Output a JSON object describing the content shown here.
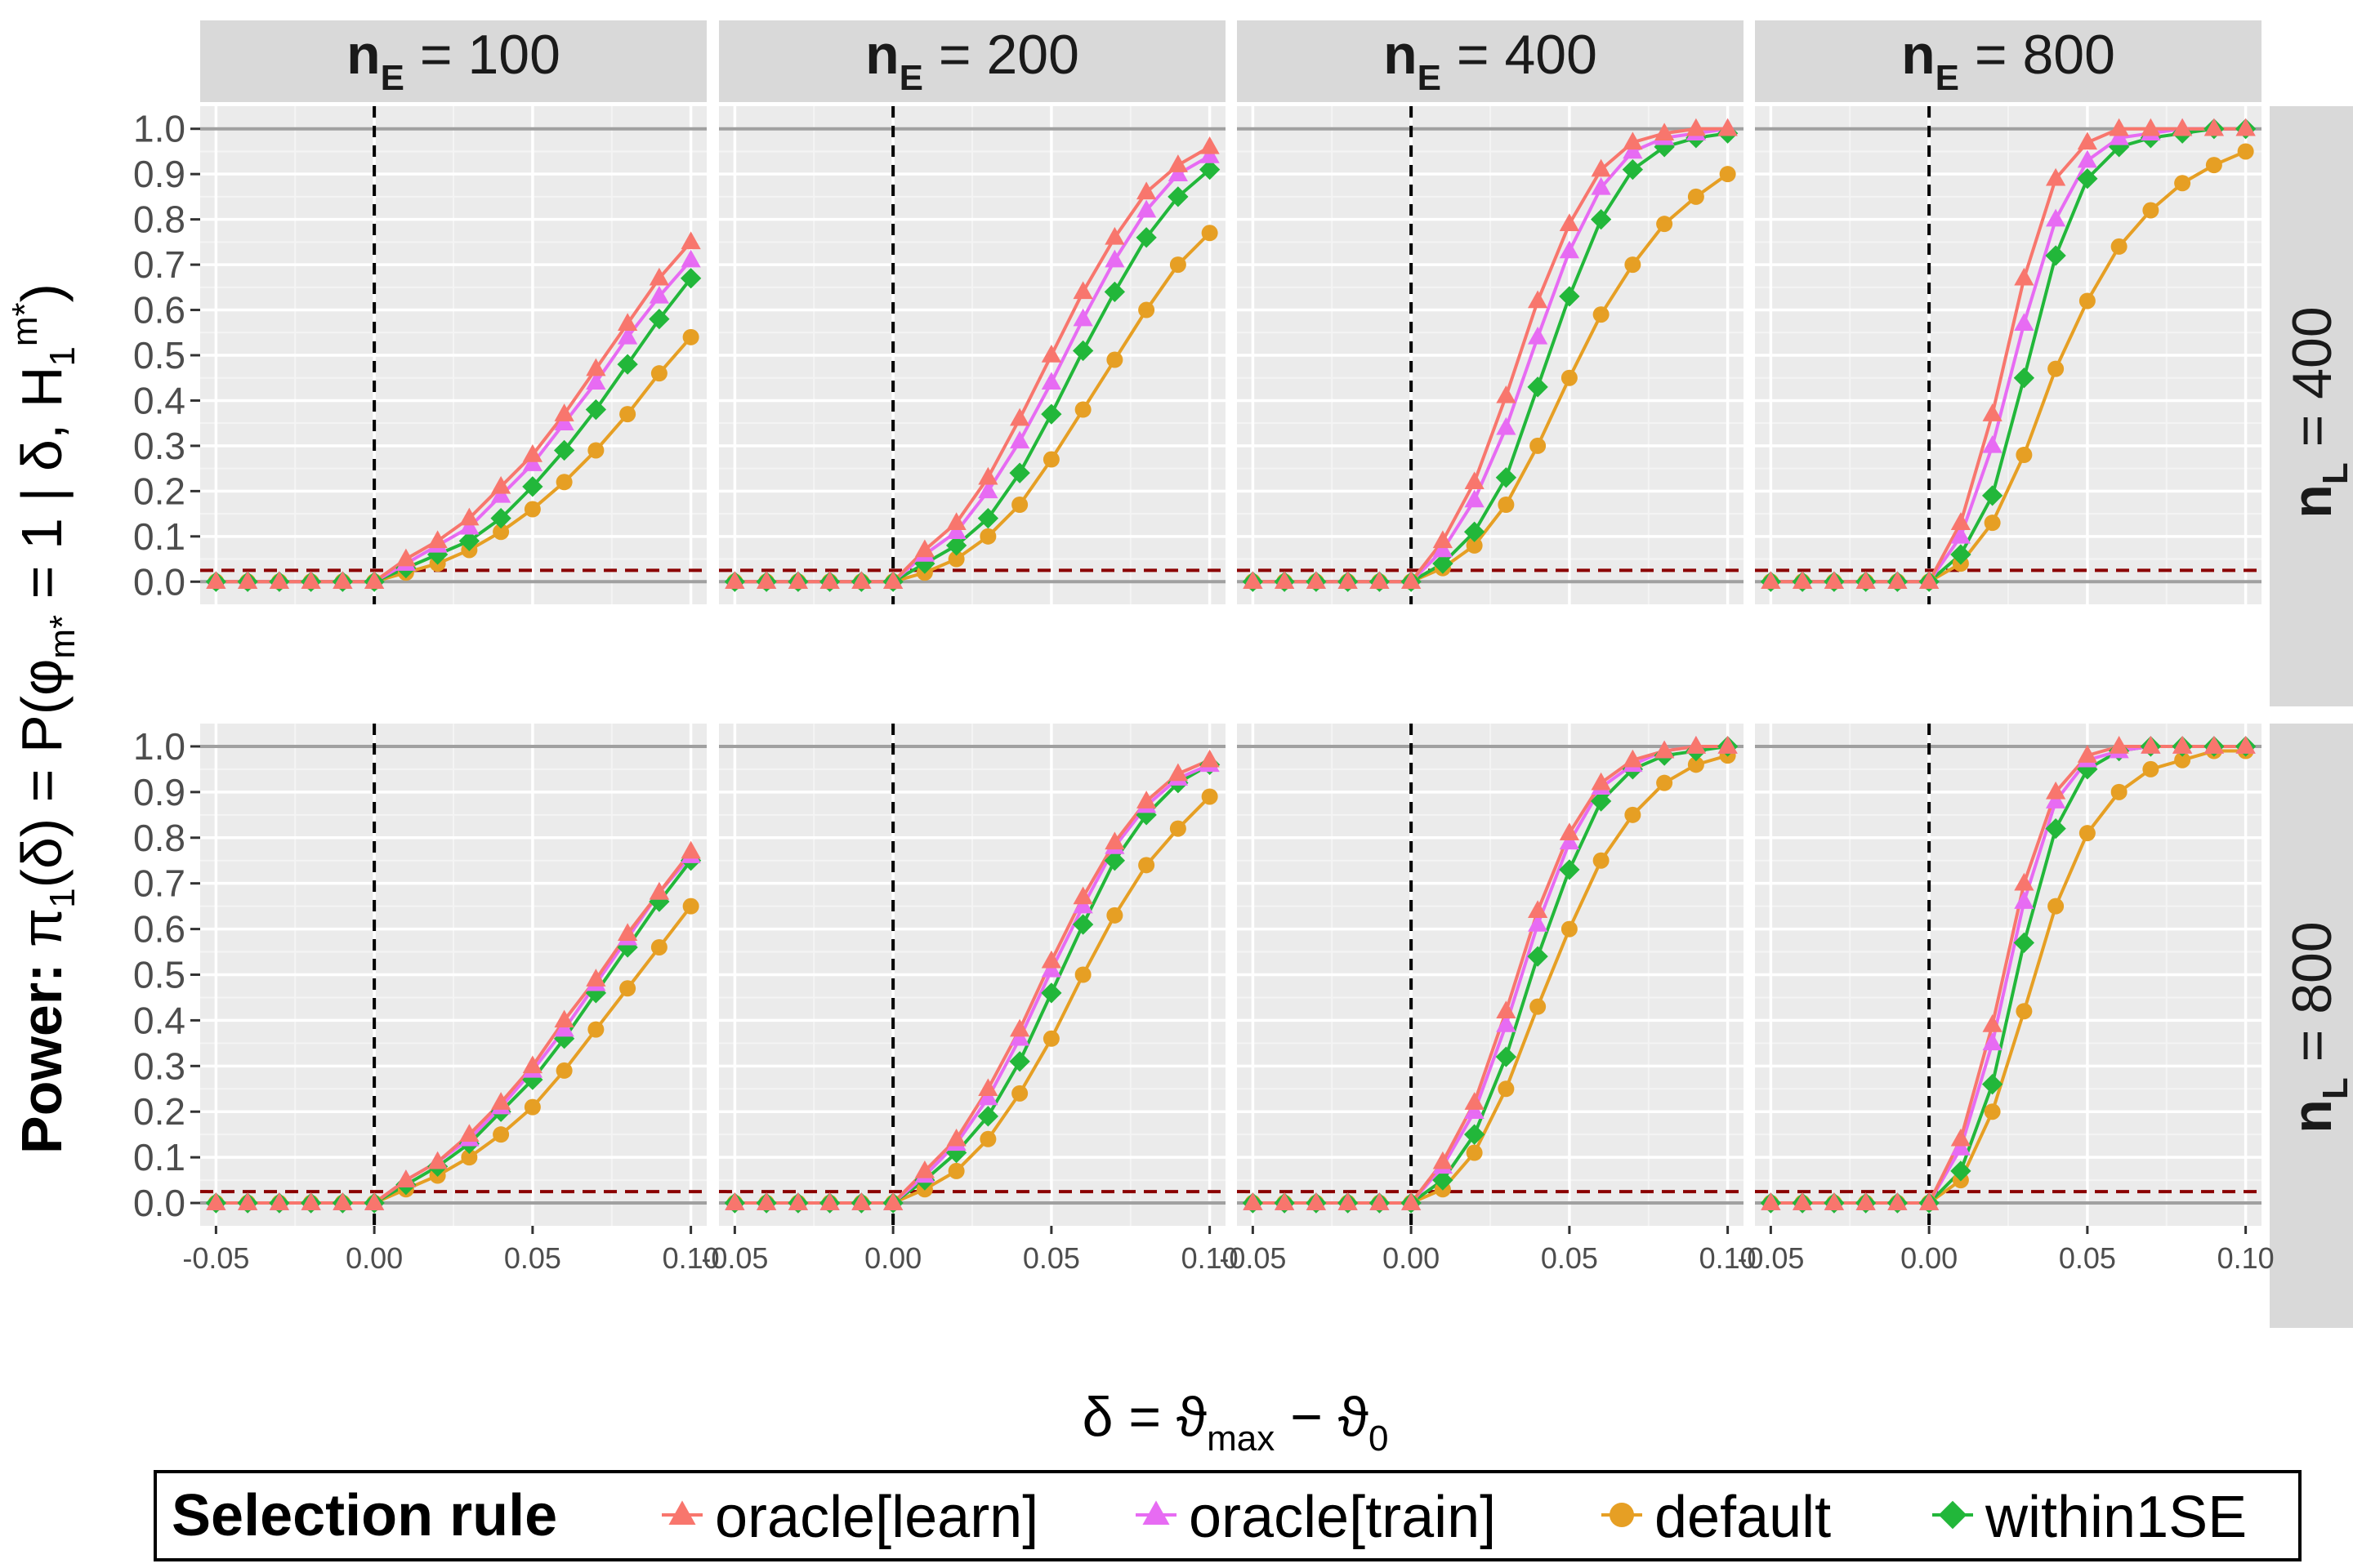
{
  "chart_data": {
    "type": "line",
    "facets": {
      "columns": [
        {
          "var": "n",
          "sub": "E",
          "op": "=",
          "value": "100"
        },
        {
          "var": "n",
          "sub": "E",
          "op": "=",
          "value": "200"
        },
        {
          "var": "n",
          "sub": "E",
          "op": "=",
          "value": "400"
        },
        {
          "var": "n",
          "sub": "E",
          "op": "=",
          "value": "800"
        }
      ],
      "rows": [
        {
          "var": "n",
          "sub": "L",
          "op": "=",
          "value": "400"
        },
        {
          "var": "n",
          "sub": "L",
          "op": "=",
          "value": "800"
        }
      ]
    },
    "x": [
      -0.05,
      -0.04,
      -0.03,
      -0.02,
      -0.01,
      0.0,
      0.01,
      0.02,
      0.03,
      0.04,
      0.05,
      0.06,
      0.07,
      0.08,
      0.09,
      0.1
    ],
    "xlim": [
      -0.055,
      0.105
    ],
    "ylim": [
      -0.05,
      1.05
    ],
    "x_ticks": [
      "-0.05",
      "0.00",
      "0.05",
      "0.10"
    ],
    "x_tick_values": [
      -0.05,
      0.0,
      0.05,
      0.1
    ],
    "y_ticks": [
      "0.0",
      "0.1",
      "0.2",
      "0.3",
      "0.4",
      "0.5",
      "0.6",
      "0.7",
      "0.8",
      "0.9",
      "1.0"
    ],
    "y_tick_values": [
      0,
      0.1,
      0.2,
      0.3,
      0.4,
      0.5,
      0.6,
      0.7,
      0.8,
      0.9,
      1.0
    ],
    "xlabel": {
      "pre": "δ = ϑ",
      "sub1": "max",
      "mid": " − ϑ",
      "sub2": "0"
    },
    "ylabel": {
      "bold": "Power: ",
      "p1": "π",
      "s1": "1",
      "p2": "(δ) = P(φ",
      "s2": "m*",
      "p3": " = 1 | δ, H",
      "s3": "1",
      "sup3": "m*",
      "p4": ")"
    },
    "reference_lines": {
      "vertical_x": 0.0,
      "horizontal_dashed_y": 0.025,
      "horizontal_solid_y": [
        0,
        1
      ]
    },
    "legend": {
      "title": "Selection rule",
      "position": "bottom",
      "entries": [
        {
          "label": "oracle[learn]",
          "color": "#F8766D",
          "shape": "triangle"
        },
        {
          "label": "oracle[train]",
          "color": "#E76BF3",
          "shape": "triangle"
        },
        {
          "label": "default",
          "color": "#E69F24",
          "shape": "circle"
        },
        {
          "label": "within1SE",
          "color": "#22B73A",
          "shape": "diamond"
        }
      ]
    },
    "panels": [
      {
        "row": 0,
        "col": 0,
        "series": [
          {
            "values": [
              0,
              0,
              0,
              0,
              0,
              0,
              0.05,
              0.09,
              0.14,
              0.21,
              0.28,
              0.37,
              0.47,
              0.57,
              0.67,
              0.75
            ]
          },
          {
            "values": [
              0,
              0,
              0,
              0,
              0,
              0,
              0.04,
              0.08,
              0.12,
              0.19,
              0.26,
              0.35,
              0.44,
              0.54,
              0.63,
              0.71
            ]
          },
          {
            "values": [
              0,
              0,
              0,
              0,
              0,
              0,
              0.02,
              0.04,
              0.07,
              0.11,
              0.16,
              0.22,
              0.29,
              0.37,
              0.46,
              0.54
            ]
          },
          {
            "values": [
              0,
              0,
              0,
              0,
              0,
              0,
              0.03,
              0.06,
              0.09,
              0.14,
              0.21,
              0.29,
              0.38,
              0.48,
              0.58,
              0.67
            ]
          }
        ]
      },
      {
        "row": 0,
        "col": 1,
        "series": [
          {
            "values": [
              0,
              0,
              0,
              0,
              0,
              0,
              0.07,
              0.13,
              0.23,
              0.36,
              0.5,
              0.64,
              0.76,
              0.86,
              0.92,
              0.96
            ]
          },
          {
            "values": [
              0,
              0,
              0,
              0,
              0,
              0,
              0.06,
              0.11,
              0.2,
              0.31,
              0.44,
              0.58,
              0.71,
              0.82,
              0.9,
              0.94
            ]
          },
          {
            "values": [
              0,
              0,
              0,
              0,
              0,
              0,
              0.02,
              0.05,
              0.1,
              0.17,
              0.27,
              0.38,
              0.49,
              0.6,
              0.7,
              0.77
            ]
          },
          {
            "values": [
              0,
              0,
              0,
              0,
              0,
              0,
              0.04,
              0.08,
              0.14,
              0.24,
              0.37,
              0.51,
              0.64,
              0.76,
              0.85,
              0.91
            ]
          }
        ]
      },
      {
        "row": 0,
        "col": 2,
        "series": [
          {
            "values": [
              0,
              0,
              0,
              0,
              0,
              0,
              0.09,
              0.22,
              0.41,
              0.62,
              0.79,
              0.91,
              0.97,
              0.99,
              1.0,
              1.0
            ]
          },
          {
            "values": [
              0,
              0,
              0,
              0,
              0,
              0,
              0.07,
              0.18,
              0.34,
              0.54,
              0.73,
              0.87,
              0.95,
              0.98,
              0.99,
              1.0
            ]
          },
          {
            "values": [
              0,
              0,
              0,
              0,
              0,
              0,
              0.03,
              0.08,
              0.17,
              0.3,
              0.45,
              0.59,
              0.7,
              0.79,
              0.85,
              0.9
            ]
          },
          {
            "values": [
              0,
              0,
              0,
              0,
              0,
              0,
              0.04,
              0.11,
              0.23,
              0.43,
              0.63,
              0.8,
              0.91,
              0.96,
              0.98,
              0.99
            ]
          }
        ]
      },
      {
        "row": 0,
        "col": 3,
        "series": [
          {
            "values": [
              0,
              0,
              0,
              0,
              0,
              0,
              0.13,
              0.37,
              0.67,
              0.89,
              0.97,
              1.0,
              1.0,
              1.0,
              1.0,
              1.0
            ]
          },
          {
            "values": [
              0,
              0,
              0,
              0,
              0,
              0,
              0.1,
              0.3,
              0.57,
              0.8,
              0.93,
              0.98,
              0.99,
              1.0,
              1.0,
              1.0
            ]
          },
          {
            "values": [
              0,
              0,
              0,
              0,
              0,
              0,
              0.04,
              0.13,
              0.28,
              0.47,
              0.62,
              0.74,
              0.82,
              0.88,
              0.92,
              0.95
            ]
          },
          {
            "values": [
              0,
              0,
              0,
              0,
              0,
              0,
              0.06,
              0.19,
              0.45,
              0.72,
              0.89,
              0.96,
              0.98,
              0.99,
              1.0,
              1.0
            ]
          }
        ]
      },
      {
        "row": 1,
        "col": 0,
        "series": [
          {
            "values": [
              0,
              0,
              0,
              0,
              0,
              0,
              0.05,
              0.09,
              0.15,
              0.22,
              0.3,
              0.4,
              0.49,
              0.59,
              0.68,
              0.77
            ]
          },
          {
            "values": [
              0,
              0,
              0,
              0,
              0,
              0,
              0.05,
              0.09,
              0.14,
              0.21,
              0.29,
              0.38,
              0.48,
              0.58,
              0.68,
              0.76
            ]
          },
          {
            "values": [
              0,
              0,
              0,
              0,
              0,
              0,
              0.03,
              0.06,
              0.1,
              0.15,
              0.21,
              0.29,
              0.38,
              0.47,
              0.56,
              0.65
            ]
          },
          {
            "values": [
              0,
              0,
              0,
              0,
              0,
              0,
              0.04,
              0.08,
              0.13,
              0.2,
              0.27,
              0.36,
              0.46,
              0.56,
              0.66,
              0.75
            ]
          }
        ]
      },
      {
        "row": 1,
        "col": 1,
        "series": [
          {
            "values": [
              0,
              0,
              0,
              0,
              0,
              0,
              0.07,
              0.14,
              0.25,
              0.38,
              0.53,
              0.67,
              0.79,
              0.88,
              0.94,
              0.97
            ]
          },
          {
            "values": [
              0,
              0,
              0,
              0,
              0,
              0,
              0.06,
              0.13,
              0.23,
              0.36,
              0.51,
              0.65,
              0.78,
              0.87,
              0.93,
              0.96
            ]
          },
          {
            "values": [
              0,
              0,
              0,
              0,
              0,
              0,
              0.03,
              0.07,
              0.14,
              0.24,
              0.36,
              0.5,
              0.63,
              0.74,
              0.82,
              0.89
            ]
          },
          {
            "values": [
              0,
              0,
              0,
              0,
              0,
              0,
              0.05,
              0.11,
              0.19,
              0.31,
              0.46,
              0.61,
              0.75,
              0.85,
              0.92,
              0.96
            ]
          }
        ]
      },
      {
        "row": 1,
        "col": 2,
        "series": [
          {
            "values": [
              0,
              0,
              0,
              0,
              0,
              0,
              0.09,
              0.22,
              0.42,
              0.64,
              0.81,
              0.92,
              0.97,
              0.99,
              1.0,
              1.0
            ]
          },
          {
            "values": [
              0,
              0,
              0,
              0,
              0,
              0,
              0.08,
              0.2,
              0.39,
              0.61,
              0.79,
              0.91,
              0.96,
              0.99,
              1.0,
              1.0
            ]
          },
          {
            "values": [
              0,
              0,
              0,
              0,
              0,
              0,
              0.03,
              0.11,
              0.25,
              0.43,
              0.6,
              0.75,
              0.85,
              0.92,
              0.96,
              0.98
            ]
          },
          {
            "values": [
              0,
              0,
              0,
              0,
              0,
              0,
              0.05,
              0.15,
              0.32,
              0.54,
              0.73,
              0.88,
              0.95,
              0.98,
              0.99,
              1.0
            ]
          }
        ]
      },
      {
        "row": 1,
        "col": 3,
        "series": [
          {
            "values": [
              0,
              0,
              0,
              0,
              0,
              0,
              0.14,
              0.39,
              0.7,
              0.9,
              0.98,
              1.0,
              1.0,
              1.0,
              1.0,
              1.0
            ]
          },
          {
            "values": [
              0,
              0,
              0,
              0,
              0,
              0,
              0.12,
              0.35,
              0.66,
              0.88,
              0.97,
              0.99,
              1.0,
              1.0,
              1.0,
              1.0
            ]
          },
          {
            "values": [
              0,
              0,
              0,
              0,
              0,
              0,
              0.05,
              0.2,
              0.42,
              0.65,
              0.81,
              0.9,
              0.95,
              0.97,
              0.99,
              0.99
            ]
          },
          {
            "values": [
              0,
              0,
              0,
              0,
              0,
              0,
              0.07,
              0.26,
              0.57,
              0.82,
              0.95,
              0.99,
              1.0,
              1.0,
              1.0,
              1.0
            ]
          }
        ]
      }
    ]
  }
}
